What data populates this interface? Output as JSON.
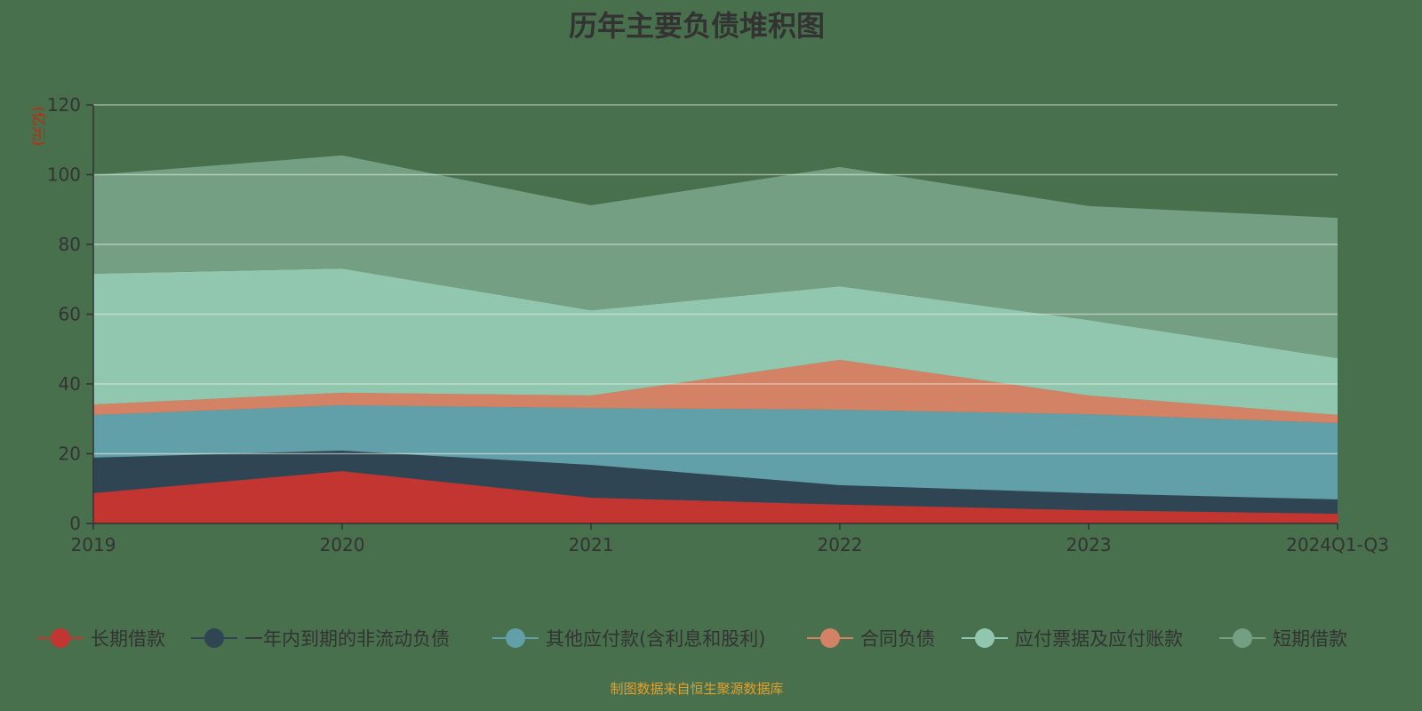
{
  "chart_data": {
    "type": "area",
    "stacked": true,
    "title": "历年主要负债堆积图",
    "ylabel": "(亿元)",
    "xlabel": "",
    "ylim": [
      0,
      120
    ],
    "yticks": [
      "0",
      "20",
      "40",
      "60",
      "80",
      "100",
      "120"
    ],
    "grid": true,
    "legend_position": "bottom",
    "categories": [
      "2019",
      "2020",
      "2021",
      "2022",
      "2023",
      "2024Q1-Q3"
    ],
    "series": [
      {
        "name": "长期借款",
        "color": "#c23531",
        "values": [
          8.7,
          15.0,
          7.4,
          5.4,
          3.8,
          2.8
        ]
      },
      {
        "name": "一年内到期的非流动负债",
        "color": "#2f4554",
        "values": [
          10.2,
          5.9,
          9.4,
          5.6,
          4.9,
          4.1
        ]
      },
      {
        "name": "其他应付款(含利息和股利)",
        "color": "#61a0a8",
        "values": [
          12.2,
          13.0,
          16.3,
          21.6,
          22.6,
          21.9
        ]
      },
      {
        "name": "合同负债",
        "color": "#d48265",
        "values": [
          3.0,
          3.6,
          3.6,
          14.3,
          5.4,
          2.3
        ]
      },
      {
        "name": "应付票据及应付账款",
        "color": "#91c7ae",
        "values": [
          37.5,
          35.6,
          24.4,
          21.1,
          21.6,
          16.3
        ]
      },
      {
        "name": "短期借款",
        "color": "#749f83",
        "values": [
          28.3,
          32.4,
          30.1,
          34.2,
          32.7,
          40.2
        ]
      }
    ]
  },
  "footer": "制图数据来自恒生聚源数据库"
}
